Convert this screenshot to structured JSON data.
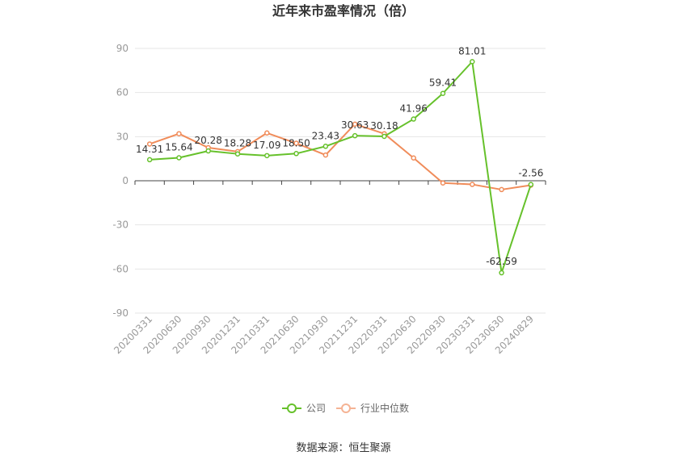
{
  "chart_data": {
    "type": "line",
    "title": "近年来市盈率情况（倍）",
    "categories": [
      "20200331",
      "20200630",
      "20200930",
      "20201231",
      "20210331",
      "20210630",
      "20210930",
      "20211231",
      "20220331",
      "20220630",
      "20220930",
      "20230331",
      "20230630",
      "20240829"
    ],
    "series": [
      {
        "name": "公司",
        "color": "#66c12b",
        "values": [
          14.31,
          15.64,
          20.28,
          18.28,
          17.09,
          18.5,
          23.43,
          30.63,
          30.18,
          41.96,
          59.41,
          81.01,
          -62.59,
          -2.56
        ],
        "labels": [
          "14.31",
          "15.64",
          "20.28",
          "18.28",
          "17.09",
          "18.50",
          "23.43",
          "30.63",
          "30.18",
          "41.96",
          "59.41",
          "81.01",
          "-62.59",
          "-2.56"
        ]
      },
      {
        "name": "行业中位数",
        "color": "#f08c5a",
        "values": [
          25.0,
          32.0,
          22.5,
          19.8,
          32.5,
          25.5,
          17.5,
          38.5,
          32.0,
          15.5,
          -1.5,
          -2.5,
          -6.0,
          -3.0
        ]
      }
    ],
    "yticks": [
      90,
      60,
      30,
      0,
      -30,
      -60,
      -90
    ],
    "ylim": [
      -90,
      90
    ],
    "grid": true,
    "legend_position": "bottom"
  },
  "footer": {
    "source": "数据来源：恒生聚源"
  }
}
